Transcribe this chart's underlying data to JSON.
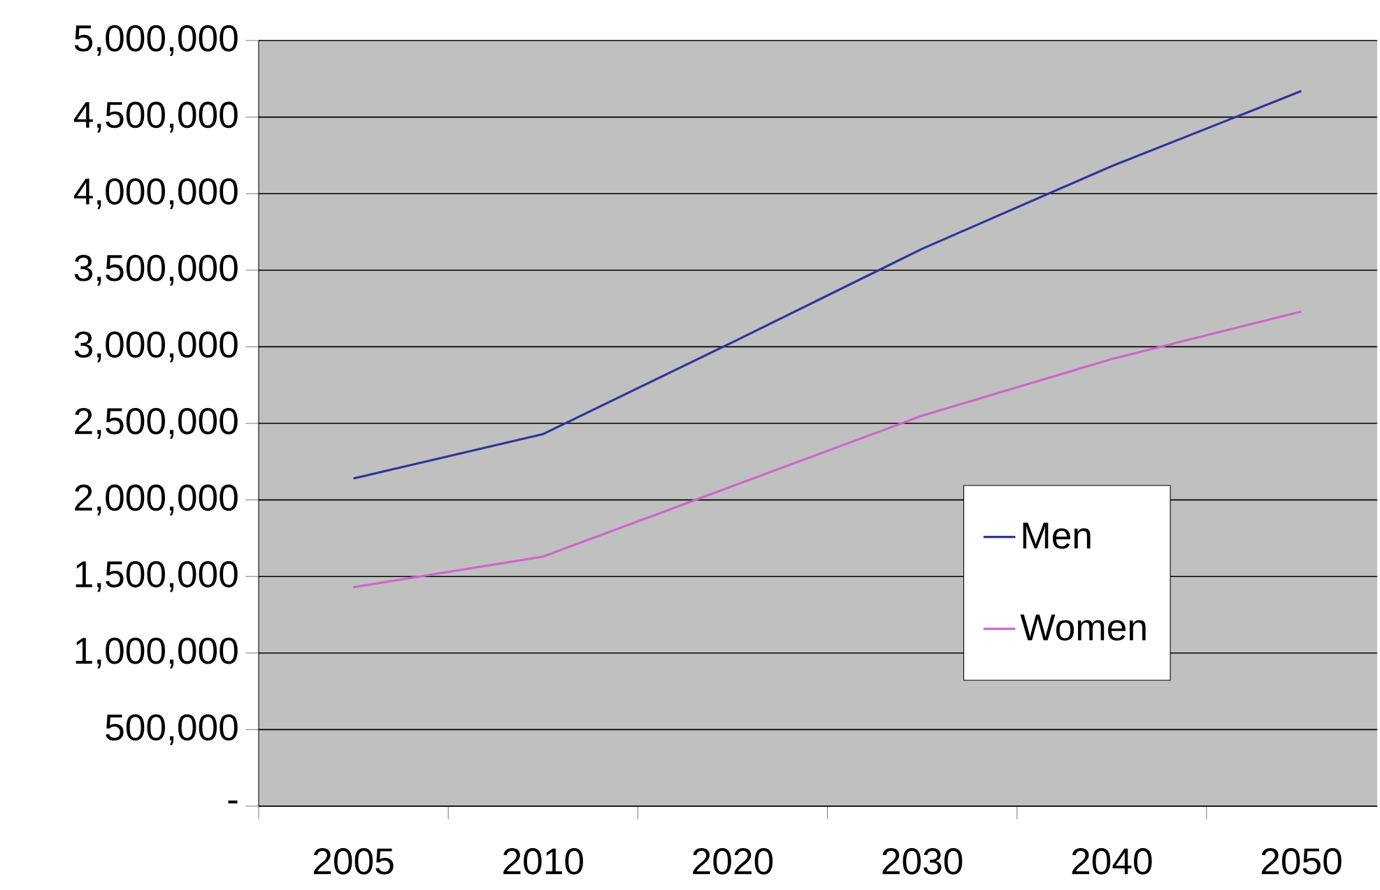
{
  "chart_data": {
    "type": "line",
    "categories": [
      "2005",
      "2010",
      "2020",
      "2030",
      "2040",
      "2050"
    ],
    "series": [
      {
        "name": "Men",
        "color": "#333399",
        "values": [
          2140000,
          2430000,
          3030000,
          3640000,
          4180000,
          4670000
        ]
      },
      {
        "name": "Women",
        "color": "#cc66cc",
        "values": [
          1430000,
          1630000,
          2090000,
          2550000,
          2920000,
          3230000
        ]
      }
    ],
    "ylim": [
      0,
      5000000
    ],
    "yticks": [
      {
        "value": 0,
        "label": "-"
      },
      {
        "value": 500000,
        "label": "500,000"
      },
      {
        "value": 1000000,
        "label": "1,000,000"
      },
      {
        "value": 1500000,
        "label": "1,500,000"
      },
      {
        "value": 2000000,
        "label": "2,000,000"
      },
      {
        "value": 2500000,
        "label": "2,500,000"
      },
      {
        "value": 3000000,
        "label": "3,000,000"
      },
      {
        "value": 3500000,
        "label": "3,500,000"
      },
      {
        "value": 4000000,
        "label": "4,000,000"
      },
      {
        "value": 4500000,
        "label": "4,500,000"
      },
      {
        "value": 5000000,
        "label": "5,000,000"
      }
    ],
    "grid": "y",
    "legend": "bottom right",
    "marker": "none",
    "line_style": "solid"
  }
}
